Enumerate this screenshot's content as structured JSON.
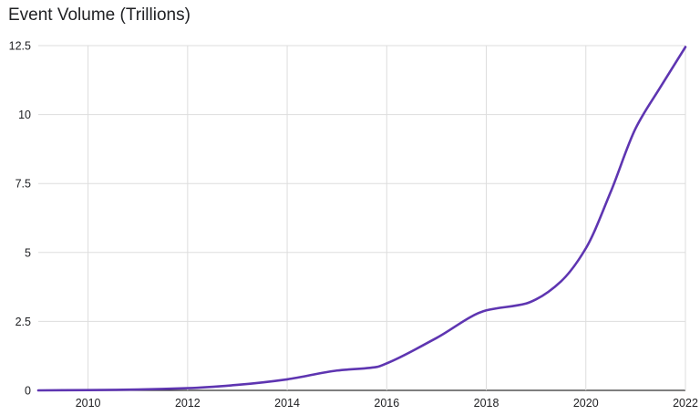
{
  "chart_data": {
    "type": "line",
    "title": "Event Volume (Trillions)",
    "xlabel": "",
    "ylabel": "",
    "xlim": [
      2009,
      2022
    ],
    "ylim": [
      0,
      12.5
    ],
    "x_ticks": [
      "2010",
      "2012",
      "2014",
      "2016",
      "2018",
      "2020",
      "2022"
    ],
    "y_ticks": [
      "0",
      "2.5",
      "5",
      "7.5",
      "10",
      "12.5"
    ],
    "grid": true,
    "legend": "none",
    "series": [
      {
        "color": "#5e35b1",
        "x": [
          2009,
          2010,
          2011,
          2012,
          2013,
          2014,
          2015,
          2015.8,
          2016,
          2017,
          2018,
          2018.8,
          2019,
          2019.5,
          2020,
          2020.5,
          2021,
          2021.5,
          2022
        ],
        "y": [
          0,
          0.01,
          0.03,
          0.08,
          0.2,
          0.4,
          0.72,
          0.85,
          0.98,
          1.9,
          2.9,
          3.15,
          3.3,
          3.95,
          5.15,
          7.2,
          9.5,
          11.0,
          12.45
        ]
      }
    ]
  }
}
